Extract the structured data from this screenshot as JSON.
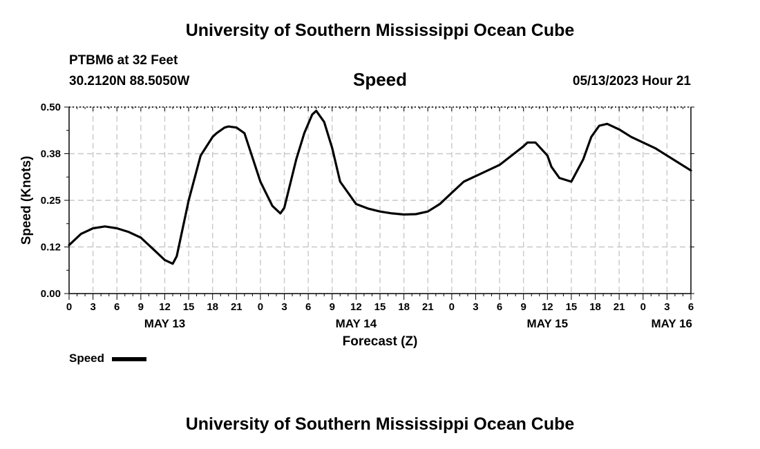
{
  "header": {
    "title": "University of Southern Mississippi Ocean Cube",
    "station": "PTBM6 at 32 Feet",
    "coords": "30.2120N  88.5050W",
    "variable": "Speed",
    "timestamp": "05/13/2023 Hour 21"
  },
  "footer": {
    "title": "University of Southern Mississippi Ocean Cube"
  },
  "legend": {
    "label": "Speed",
    "color": "#000000"
  },
  "chart_data": {
    "type": "line",
    "title": "Speed",
    "xlabel": "Forecast (Z)",
    "ylabel": "Speed (Knots)",
    "ylim": [
      0,
      0.5
    ],
    "xlim": [
      0,
      78
    ],
    "x_unit": "hours from MAY 13 00Z",
    "yticks": [
      "0.00",
      "0.12",
      "0.25",
      "0.38",
      "0.50"
    ],
    "ytick_values": [
      0,
      0.125,
      0.25,
      0.375,
      0.5
    ],
    "xtick_labels": [
      "0",
      "3",
      "6",
      "9",
      "12",
      "15",
      "18",
      "21",
      "0",
      "3",
      "6",
      "9",
      "12",
      "15",
      "18",
      "21",
      "0",
      "3",
      "6",
      "9",
      "12",
      "15",
      "18",
      "21",
      "0",
      "3",
      "6"
    ],
    "date_labels": [
      {
        "label": "MAY 13",
        "hour": 12
      },
      {
        "label": "MAY 14",
        "hour": 36
      },
      {
        "label": "MAY 15",
        "hour": 60
      },
      {
        "label": "MAY 16",
        "hour": 78
      }
    ],
    "grid": true,
    "series": [
      {
        "name": "Speed",
        "color": "#000000",
        "x": [
          0,
          1.5,
          3,
          4.5,
          6,
          7.5,
          9,
          10.5,
          12,
          13,
          13.5,
          15,
          16.5,
          18,
          18.5,
          19.5,
          20,
          21,
          22,
          24,
          25.5,
          26.5,
          27,
          28.5,
          29.5,
          30.5,
          31,
          32,
          33,
          34,
          36,
          37.5,
          39,
          40.5,
          42,
          43.5,
          45,
          46.5,
          48,
          49.5,
          51,
          52.5,
          54,
          55.5,
          57,
          57.5,
          58.5,
          60,
          60.5,
          61.5,
          63,
          64.5,
          65.5,
          66.5,
          67.5,
          69,
          70.5,
          72,
          73.5,
          75,
          76.5,
          78
        ],
        "values": [
          0.13,
          0.16,
          0.175,
          0.18,
          0.175,
          0.165,
          0.15,
          0.12,
          0.09,
          0.08,
          0.1,
          0.25,
          0.37,
          0.42,
          0.43,
          0.445,
          0.448,
          0.445,
          0.43,
          0.3,
          0.235,
          0.215,
          0.23,
          0.36,
          0.43,
          0.48,
          0.49,
          0.46,
          0.39,
          0.3,
          0.24,
          0.228,
          0.22,
          0.215,
          0.212,
          0.213,
          0.22,
          0.24,
          0.27,
          0.3,
          0.315,
          0.33,
          0.345,
          0.37,
          0.395,
          0.405,
          0.405,
          0.37,
          0.34,
          0.31,
          0.3,
          0.36,
          0.42,
          0.45,
          0.455,
          0.44,
          0.42,
          0.405,
          0.39,
          0.37,
          0.35,
          0.33
        ]
      }
    ]
  }
}
